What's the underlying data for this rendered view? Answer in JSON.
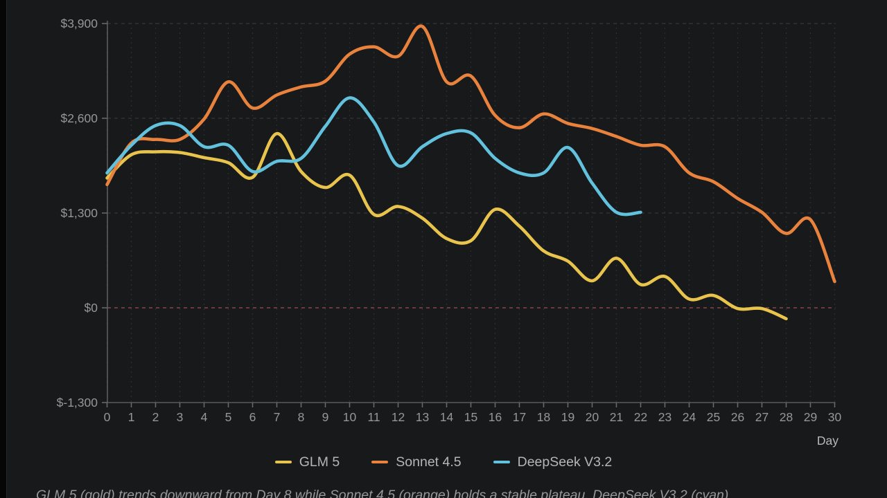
{
  "chart_data": {
    "type": "line",
    "title": "",
    "xlabel": "Day",
    "ylabel": "",
    "xlim": [
      0,
      30
    ],
    "ylim": [
      -1300,
      3900
    ],
    "grid": true,
    "legend_position": "bottom",
    "x_tick_labels": [
      "0",
      "1",
      "2",
      "3",
      "4",
      "5",
      "6",
      "7",
      "8",
      "9",
      "10",
      "11",
      "12",
      "13",
      "14",
      "15",
      "16",
      "17",
      "18",
      "19",
      "20",
      "21",
      "22",
      "23",
      "24",
      "25",
      "26",
      "27",
      "28",
      "29",
      "30"
    ],
    "y_ticks": [
      {
        "value": 3900,
        "label": "$3,900"
      },
      {
        "value": 2600,
        "label": "$2,600"
      },
      {
        "value": 1300,
        "label": "$1,300"
      },
      {
        "value": 0,
        "label": "$0"
      },
      {
        "value": -1300,
        "label": "$-1,300"
      }
    ],
    "zero_line": {
      "value": 0,
      "style": "dashed",
      "color": "#8a454c"
    },
    "series": [
      {
        "name": "GLM 5",
        "color": "#e8c44d",
        "start_day": 0,
        "values": [
          1780,
          2100,
          2140,
          2130,
          2060,
          1990,
          1790,
          2390,
          1870,
          1650,
          1820,
          1280,
          1390,
          1230,
          950,
          920,
          1350,
          1120,
          780,
          640,
          370,
          680,
          320,
          430,
          120,
          170,
          -10,
          -10,
          -150
        ]
      },
      {
        "name": "Sonnet 4.5",
        "color": "#e8823c",
        "start_day": 0,
        "values": [
          1690,
          2260,
          2310,
          2310,
          2590,
          3100,
          2740,
          2920,
          3030,
          3110,
          3480,
          3580,
          3450,
          3860,
          3100,
          3180,
          2640,
          2470,
          2660,
          2530,
          2460,
          2350,
          2230,
          2210,
          1850,
          1730,
          1500,
          1310,
          1020,
          1210,
          360
        ]
      },
      {
        "name": "DeepSeek V3.2",
        "color": "#62c1dc",
        "start_day": 0,
        "values": [
          1850,
          2230,
          2500,
          2500,
          2210,
          2230,
          1870,
          2010,
          2050,
          2490,
          2880,
          2550,
          1950,
          2210,
          2390,
          2400,
          2050,
          1850,
          1850,
          2200,
          1710,
          1310,
          1310
        ]
      }
    ]
  },
  "legend": {
    "items": [
      {
        "label": "GLM 5",
        "color": "#e8c44d"
      },
      {
        "label": "Sonnet 4.5",
        "color": "#e8823c"
      },
      {
        "label": "DeepSeek V3.2",
        "color": "#62c1dc"
      }
    ]
  },
  "axis": {
    "x_title": "Day"
  },
  "caption": "GLM 5 (gold) trends downward from Day 8 while Sonnet 4.5 (orange) holds a stable plateau. DeepSeek V3.2 (cyan)",
  "colors": {
    "background": "#17191b",
    "grid_vertical": "#2b2d30",
    "grid_horizontal": "#35373a",
    "axis_line": "#595c5f",
    "tick": "#6a6d70",
    "tick_label": "#94979b",
    "axis_title": "#b7babd",
    "legend_text": "#b4b7ba",
    "caption_text": "#95989b",
    "zero_line": "#8a454c"
  }
}
